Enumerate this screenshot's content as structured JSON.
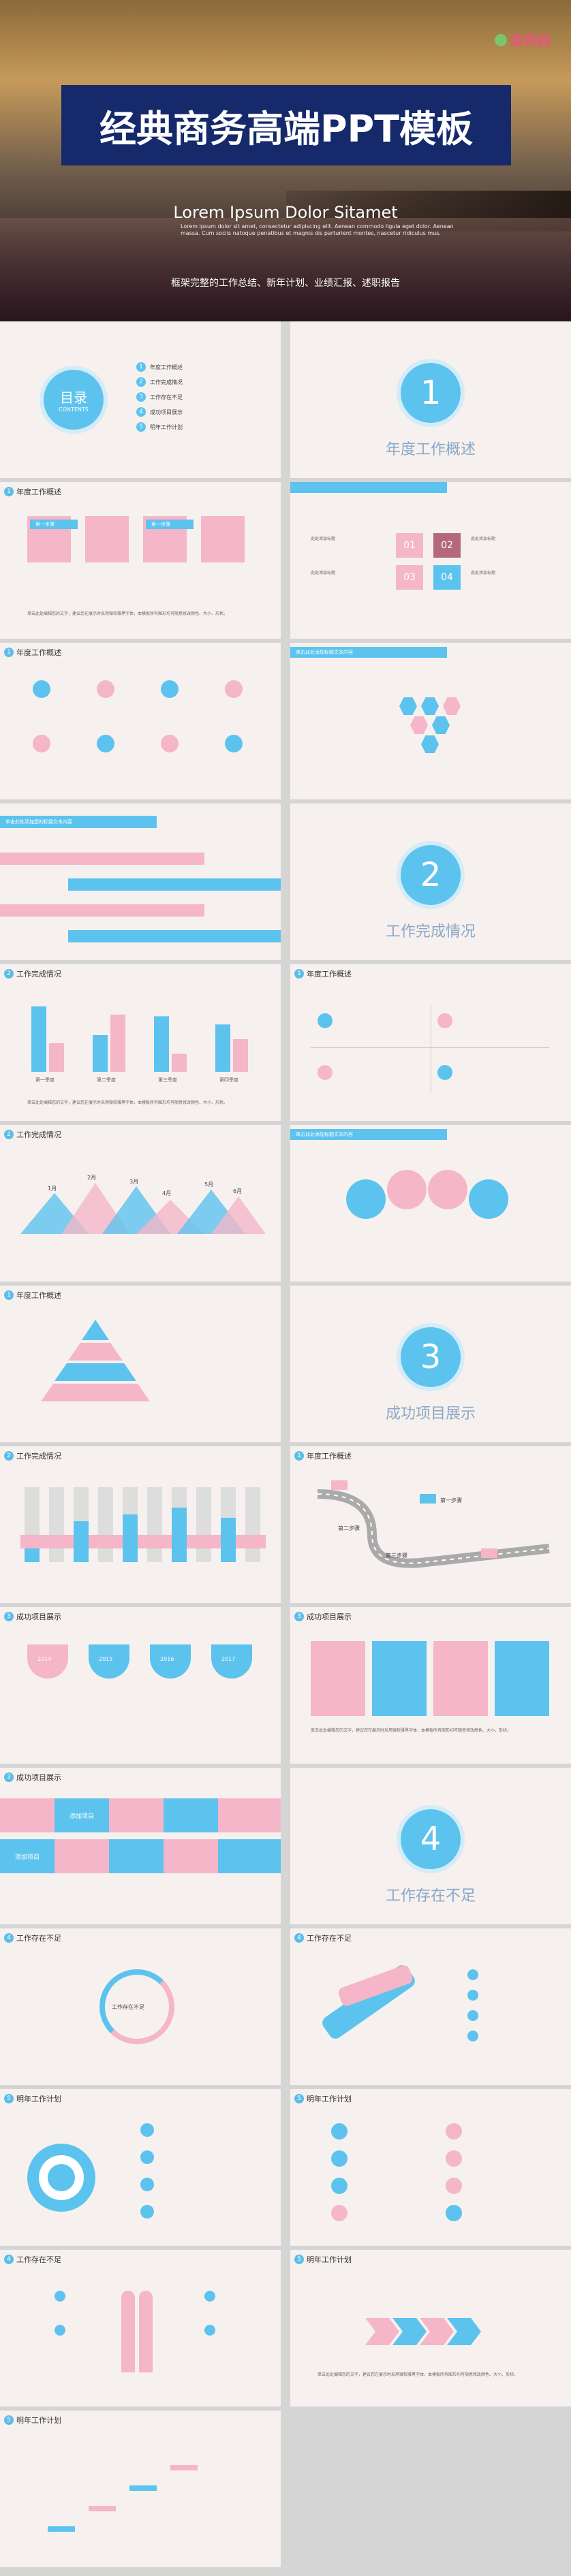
{
  "cover": {
    "title": "经典商务高端PPT模板",
    "subtitle": "Lorem Ipsum Dolor Sitamet",
    "lorem": "Lorem ipsum dolor sit amet, consectetur adipiscing elit. Aenean commodo ligula eget dolor. Aenean massa. Cum sociis natoque penatibus et magnis dis parturient montes, nascetur ridiculus mus.",
    "desc": "框架完整的工作总结、新年计划、业绩汇报、述职报告",
    "logo": "演界网"
  },
  "toc": {
    "title": "目录",
    "sub": "CONTENTS",
    "items": [
      "年度工作概述",
      "工作完成情况",
      "工作存在不足",
      "成功项目展示",
      "明年工作计划"
    ]
  },
  "sections": [
    {
      "num": "1",
      "title": "年度工作概述"
    },
    {
      "num": "2",
      "title": "工作完成情况"
    },
    {
      "num": "3",
      "title": "成功项目展示"
    },
    {
      "num": "4",
      "title": "工作存在不足"
    }
  ],
  "headers": {
    "h1": "年度工作概述",
    "h2": "工作完成情况",
    "h3": "成功项目展示",
    "h4": "工作存在不足",
    "h5": "明年工作计划"
  },
  "labels": {
    "first": "第一步骤",
    "input": "请输入您的内容",
    "title_here": "此处添加标题",
    "add_title": "单击此处添加标题文本内容",
    "insert": "单击此处添加您的标题文本内容",
    "center": "工作存在不足",
    "nums": [
      "01",
      "02",
      "03",
      "04"
    ],
    "months": [
      "1月",
      "2月",
      "3月",
      "4月",
      "5月",
      "6月"
    ],
    "years": [
      "2014",
      "2015",
      "2016",
      "2017"
    ],
    "step1": "第一步骤",
    "step2": "第二步骤",
    "step3": "第三步骤",
    "project": "添加项目"
  },
  "para": "单击此处编辑您的文字，建议您在展示时采用微软雅黑字体，本模板所有图形均可随意修改颜色、大小、形状。",
  "chart_data": {
    "type": "bar",
    "categories": [
      "第一季度",
      "第二季度",
      "第三季度",
      "第四季度"
    ],
    "series": [
      {
        "name": "",
        "values": [
          80,
          45,
          68,
          58
        ]
      },
      {
        "name": "",
        "values": [
          35,
          70,
          22,
          40
        ]
      }
    ],
    "ylim": [
      0,
      100
    ]
  },
  "colors": {
    "blue": "#5cc3ee",
    "pink": "#f4b6c8",
    "navy": "#1b2a6b"
  }
}
